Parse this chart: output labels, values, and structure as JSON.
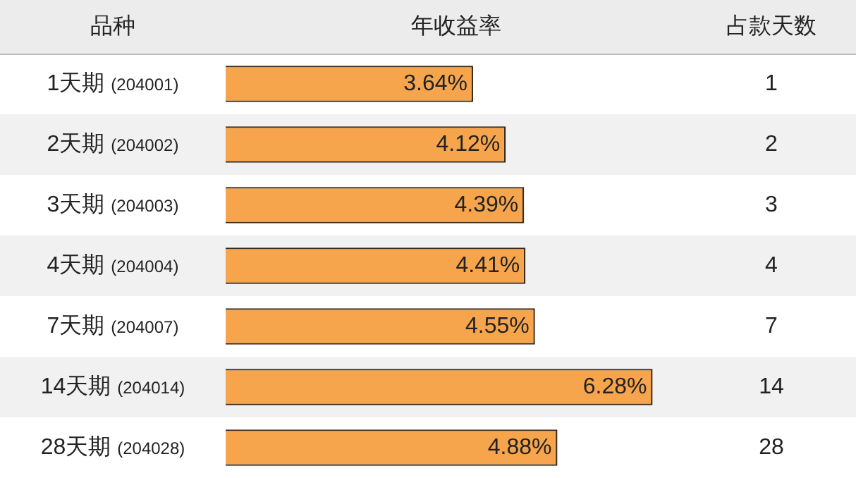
{
  "chart_data": {
    "type": "bar",
    "orientation": "horizontal",
    "title": "年收益率",
    "ylabel": "品种",
    "categories": [
      "1天期 (204001)",
      "2天期 (204002)",
      "3天期 (204003)",
      "4天期 (204004)",
      "7天期 (204007)",
      "14天期 (204014)",
      "28天期 (204028)"
    ],
    "values": [
      3.64,
      4.12,
      4.39,
      4.41,
      4.55,
      6.28,
      4.88
    ],
    "color": "#f7a54c",
    "tick_labels": false,
    "data_labels": true,
    "value_labels": [
      "3.64%",
      "4.12%",
      "4.39%",
      "4.41%",
      "4.55%",
      "6.28%",
      "4.88%"
    ],
    "annotations": [
      "占款天数",
      "1",
      "2",
      "3",
      "4",
      "7",
      "14",
      "28"
    ],
    "legend": false
  }
}
